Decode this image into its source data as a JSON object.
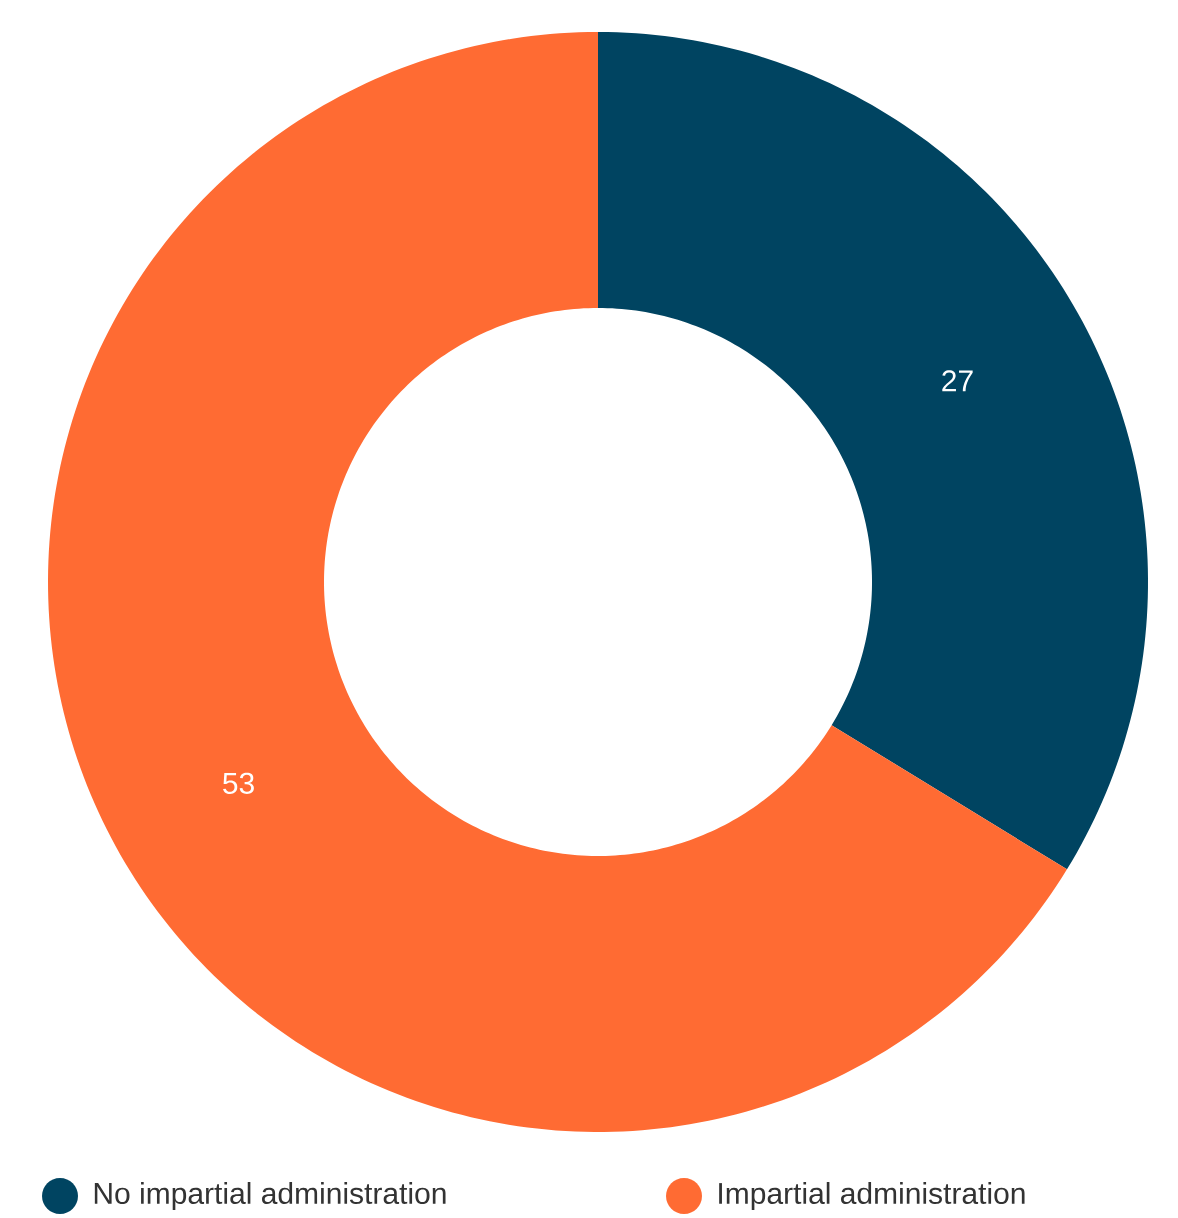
{
  "chart_data": {
    "type": "donut",
    "categories": [
      "No impartial administration",
      "Impartial administration"
    ],
    "values": [
      27,
      53
    ],
    "value_labels": [
      "27",
      "53"
    ],
    "colors": [
      "#004461",
      "#ff6b33"
    ],
    "legend": "bottom"
  }
}
